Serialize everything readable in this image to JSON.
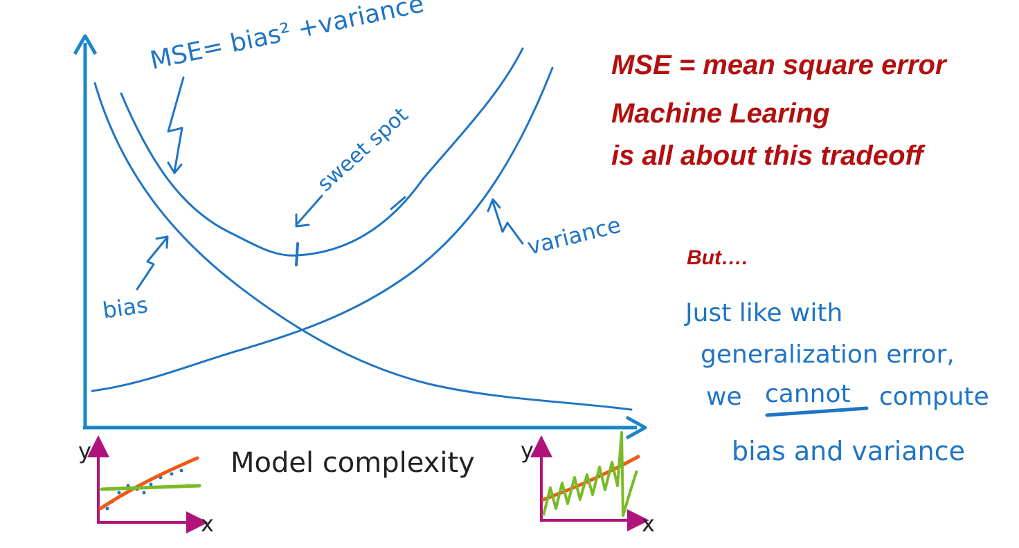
{
  "diagram": {
    "x_axis_label": "Model complexity",
    "curve_labels": {
      "mse": "MSE= bias² +variance",
      "sweet_spot": "sweet spot",
      "bias": "bias",
      "variance": "variance"
    },
    "mini_plots": {
      "y_label": "y",
      "x_label": "x"
    }
  },
  "notes": {
    "red_lines": [
      "MSE = mean square error",
      "Machine Learing",
      "is all about this tradeoff"
    ],
    "but": "But….",
    "handwritten": [
      "Just like with",
      "generalization error,",
      "we",
      "cannot",
      "compute",
      "bias and variance"
    ]
  },
  "colors": {
    "curve_blue": "#1f74c4",
    "axis_blue": "#1a86c9",
    "red_text": "#b30f0f",
    "mini_axis_magenta": "#b0147a",
    "fit_orange": "#f05a14",
    "fit_green": "#78bb26"
  }
}
